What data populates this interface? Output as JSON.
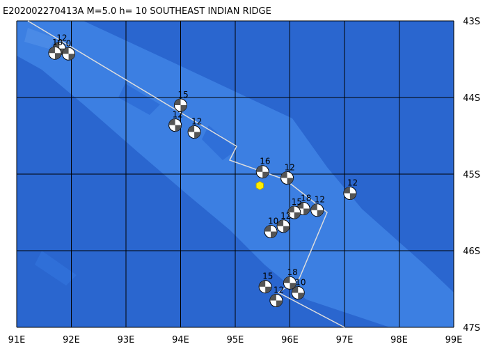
{
  "title": "E202002270413A M=5.0 h= 10 SOUTHEAST INDIAN RIDGE",
  "lonlim": [
    91,
    99
  ],
  "latlim": [
    43,
    47
  ],
  "lon_ticks": [
    {
      "value": 91,
      "label": "91E"
    },
    {
      "value": 92,
      "label": "92E"
    },
    {
      "value": 93,
      "label": "93E"
    },
    {
      "value": 94,
      "label": "94E"
    },
    {
      "value": 95,
      "label": "95E"
    },
    {
      "value": 96,
      "label": "96E"
    },
    {
      "value": 97,
      "label": "97E"
    },
    {
      "value": 98,
      "label": "98E"
    },
    {
      "value": 99,
      "label": "99E"
    }
  ],
  "lat_ticks": [
    {
      "value": 43,
      "label": "43S"
    },
    {
      "value": 44,
      "label": "44S"
    },
    {
      "value": 45,
      "label": "45S"
    },
    {
      "value": 46,
      "label": "46S"
    },
    {
      "value": 47,
      "label": "47S"
    }
  ],
  "epicenter": {
    "lon": 95.45,
    "lat": 45.15
  },
  "events": [
    {
      "label": "12",
      "lon": 91.78,
      "lat": 43.36
    },
    {
      "label": "10",
      "lon": 91.7,
      "lat": 43.42
    },
    {
      "label": "0",
      "lon": 91.95,
      "lat": 43.43
    },
    {
      "label": "15",
      "lon": 94.0,
      "lat": 44.1
    },
    {
      "label": "12",
      "lon": 93.9,
      "lat": 44.36
    },
    {
      "label": "12",
      "lon": 94.25,
      "lat": 44.45
    },
    {
      "label": "16",
      "lon": 95.5,
      "lat": 44.97
    },
    {
      "label": "12",
      "lon": 95.95,
      "lat": 45.05
    },
    {
      "label": "12",
      "lon": 97.1,
      "lat": 45.25
    },
    {
      "label": "18",
      "lon": 96.25,
      "lat": 45.45
    },
    {
      "label": "12",
      "lon": 96.5,
      "lat": 45.47
    },
    {
      "label": "15",
      "lon": 96.08,
      "lat": 45.5
    },
    {
      "label": "10",
      "lon": 95.65,
      "lat": 45.75
    },
    {
      "label": "12",
      "lon": 95.88,
      "lat": 45.68
    },
    {
      "label": "15",
      "lon": 95.55,
      "lat": 46.47
    },
    {
      "label": "18",
      "lon": 96.0,
      "lat": 46.42
    },
    {
      "label": "12",
      "lon": 95.75,
      "lat": 46.65
    },
    {
      "label": "10",
      "lon": 96.15,
      "lat": 46.55
    }
  ]
}
